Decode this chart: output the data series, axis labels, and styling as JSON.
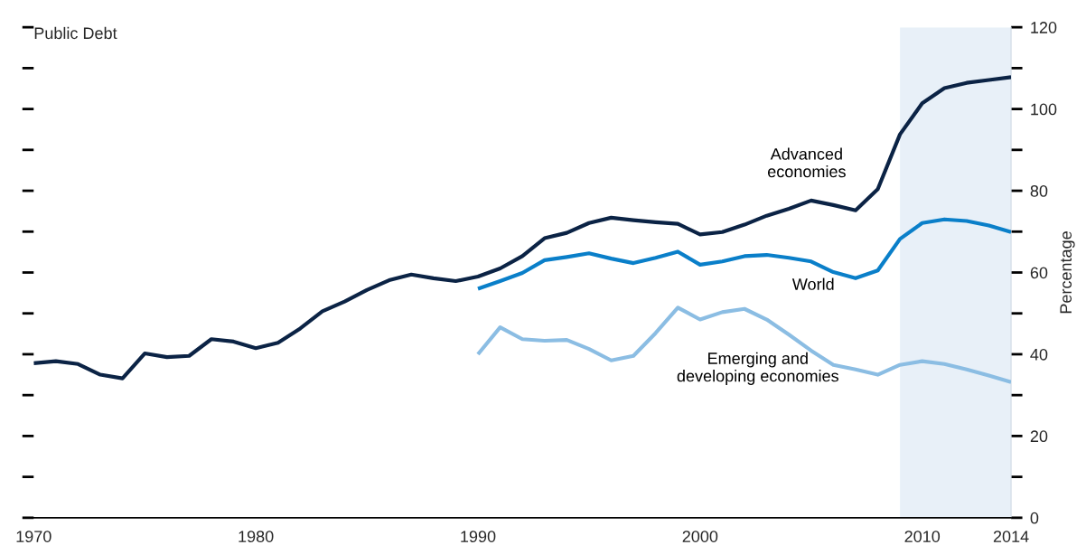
{
  "chart_data": {
    "type": "line",
    "title": "Public Debt",
    "ylabel": "Percentage",
    "x": [
      1970,
      1971,
      1972,
      1973,
      1974,
      1975,
      1976,
      1977,
      1978,
      1979,
      1980,
      1981,
      1982,
      1983,
      1984,
      1985,
      1986,
      1987,
      1988,
      1989,
      1990,
      1991,
      1992,
      1993,
      1994,
      1995,
      1996,
      1997,
      1998,
      1999,
      2000,
      2001,
      2002,
      2003,
      2004,
      2005,
      2006,
      2007,
      2008,
      2009,
      2010,
      2011,
      2012,
      2013,
      2014
    ],
    "series": [
      {
        "name": "Advanced\neconomies",
        "color": "#0b2345",
        "values": [
          37.8,
          38.3,
          37.6,
          35.0,
          34.1,
          40.2,
          39.3,
          39.6,
          43.7,
          43.1,
          41.5,
          42.8,
          46.3,
          50.5,
          52.9,
          55.7,
          58.1,
          59.5,
          58.6,
          57.9,
          59.0,
          61.0,
          64.0,
          68.4,
          69.7,
          72.1,
          73.4,
          72.8,
          72.3,
          71.9,
          69.3,
          69.9,
          71.7,
          73.9,
          75.6,
          77.6,
          76.5,
          75.2,
          80.4,
          93.8,
          101.4,
          105.1,
          106.4,
          107.1,
          107.8
        ]
      },
      {
        "name": "World",
        "color": "#0a7fc9",
        "values": [
          null,
          null,
          null,
          null,
          null,
          null,
          null,
          null,
          null,
          null,
          null,
          null,
          null,
          null,
          null,
          null,
          null,
          null,
          null,
          null,
          56.0,
          57.9,
          59.9,
          63.0,
          63.8,
          64.7,
          63.4,
          62.3,
          63.6,
          65.1,
          61.9,
          62.7,
          64.0,
          64.3,
          63.6,
          62.7,
          60.1,
          58.6,
          60.5,
          68.2,
          72.1,
          73.0,
          72.6,
          71.5,
          69.9
        ]
      },
      {
        "name": "Emerging and\ndeveloping economies",
        "color": "#8bbde3",
        "values": [
          null,
          null,
          null,
          null,
          null,
          null,
          null,
          null,
          null,
          null,
          null,
          null,
          null,
          null,
          null,
          null,
          null,
          null,
          null,
          null,
          40.0,
          46.6,
          43.7,
          43.3,
          43.5,
          41.3,
          38.5,
          39.6,
          45.2,
          51.4,
          48.5,
          50.3,
          51.1,
          48.5,
          44.8,
          40.9,
          37.4,
          36.3,
          35.0,
          37.4,
          38.3,
          37.6,
          36.3,
          34.8,
          33.2
        ]
      }
    ],
    "xlim": [
      1970,
      2014
    ],
    "xticks": [
      1970,
      1980,
      1990,
      2000,
      2010,
      2014
    ],
    "ylim": [
      0,
      120
    ],
    "yticks": [
      0,
      {
        "value": 10,
        "label": null
      },
      20,
      {
        "value": 30,
        "label": null
      },
      40,
      {
        "value": 50,
        "label": null
      },
      60,
      {
        "value": 70,
        "label": null
      },
      80,
      {
        "value": 90,
        "label": null
      },
      100,
      {
        "value": 110,
        "label": null
      },
      120
    ],
    "bands": [
      {
        "axis": "x",
        "from": 2009,
        "to": 2014,
        "color": "#e8f0f8"
      }
    ],
    "grid": false,
    "legend": false,
    "line_style": "solid",
    "marker": "none"
  }
}
